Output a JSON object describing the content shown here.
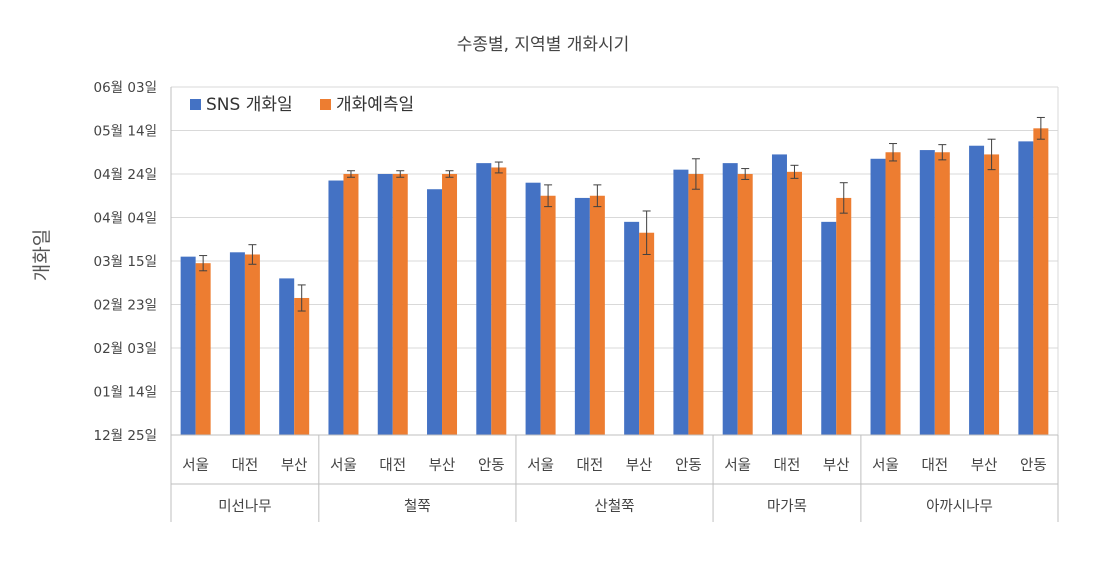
{
  "chart_data": {
    "type": "bar",
    "title": "수종별, 지역별 개화시기",
    "ylabel": "개화일",
    "xlabel": "",
    "yticks": [
      "12월 25일",
      "01월 14일",
      "02월 03일",
      "02월 23일",
      "03월 15일",
      "04월 04일",
      "04월 24일",
      "05월 14일",
      "06월 03일"
    ],
    "ylim": [
      0,
      160
    ],
    "y_units": "days since 12월 25일",
    "grid": true,
    "legend_position": "top-left",
    "groups": [
      {
        "name": "미선나무",
        "categories": [
          "서울",
          "대전",
          "부산"
        ]
      },
      {
        "name": "철쭉",
        "categories": [
          "서울",
          "대전",
          "부산",
          "안동"
        ]
      },
      {
        "name": "산철쭉",
        "categories": [
          "서울",
          "대전",
          "부산",
          "안동"
        ]
      },
      {
        "name": "마가목",
        "categories": [
          "서울",
          "대전",
          "부산"
        ]
      },
      {
        "name": "아까시나무",
        "categories": [
          "서울",
          "대전",
          "부산",
          "안동"
        ]
      }
    ],
    "series": [
      {
        "name": "SNS 개화일",
        "color": "#4472C4",
        "values": [
          82,
          84,
          72,
          117,
          120,
          113,
          125,
          116,
          109,
          98,
          122,
          125,
          129,
          98,
          127,
          131,
          133,
          135
        ]
      },
      {
        "name": "개화예측일",
        "color": "#ED7D31",
        "values": [
          79,
          83,
          63,
          120,
          120,
          120,
          123,
          110,
          110,
          93,
          120,
          120,
          121,
          109,
          130,
          130,
          129,
          141
        ],
        "errors": [
          3.5,
          4.5,
          6.0,
          1.5,
          1.5,
          1.5,
          2.5,
          5.0,
          5.0,
          10.0,
          7.0,
          2.5,
          3.0,
          7.0,
          4.0,
          3.5,
          7.0,
          5.0
        ]
      }
    ]
  }
}
